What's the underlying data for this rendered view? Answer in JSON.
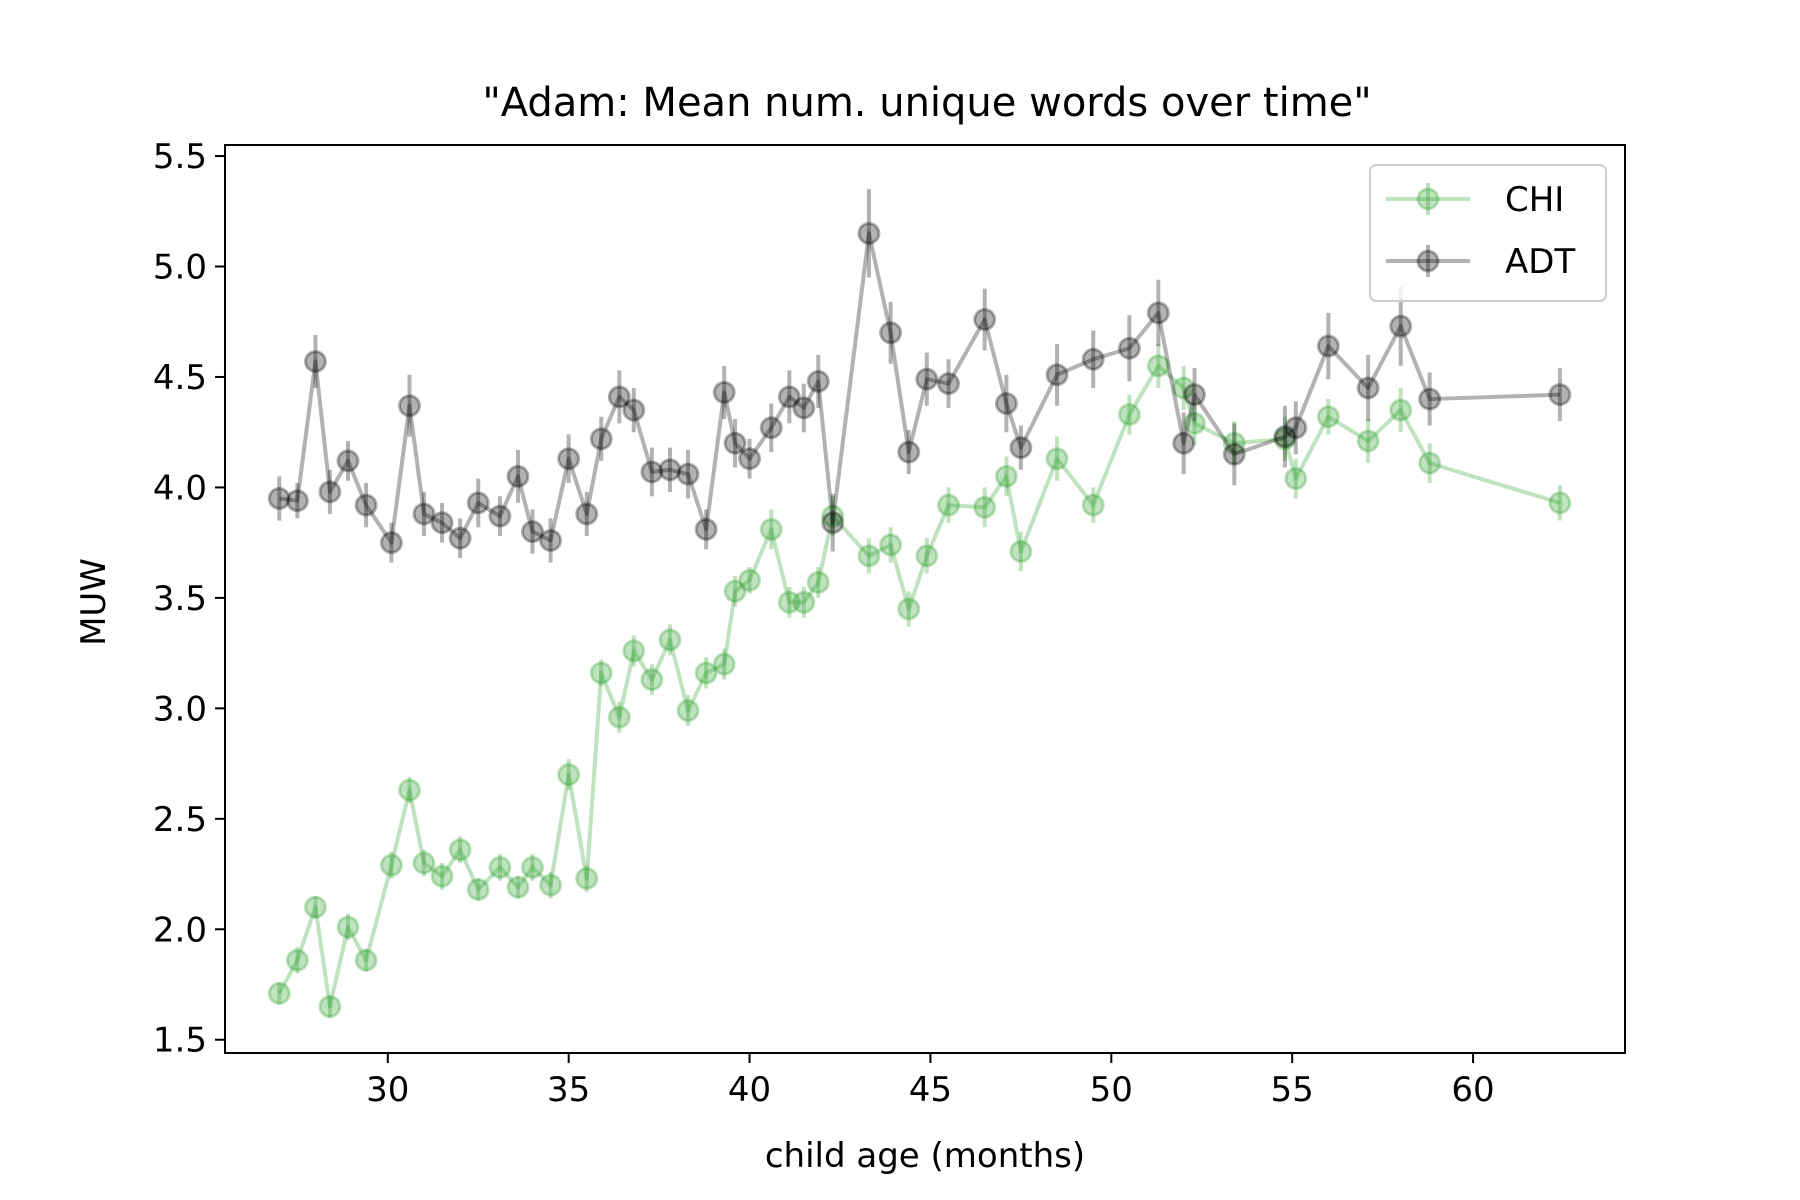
{
  "chart_data": {
    "type": "line",
    "title": "\"Adam: Mean num. unique words over time\"",
    "xlabel": "child age (months)",
    "ylabel": "MUW",
    "xlim": [
      25.5,
      64.2
    ],
    "ylim": [
      1.44,
      5.55
    ],
    "xticks": [
      30,
      35,
      40,
      45,
      50,
      55,
      60
    ],
    "yticks": [
      1.5,
      2.0,
      2.5,
      3.0,
      3.5,
      4.0,
      4.5,
      5.0,
      5.5
    ],
    "xtick_labels": [
      "30",
      "35",
      "40",
      "45",
      "50",
      "55",
      "60"
    ],
    "ytick_labels": [
      "1.5",
      "2.0",
      "2.5",
      "3.0",
      "3.5",
      "4.0",
      "4.5",
      "5.0",
      "5.5"
    ],
    "grid": false,
    "legend_position": "upper-right",
    "series": [
      {
        "name": "CHI",
        "color": "#2ca02c",
        "x": [
          27.0,
          27.5,
          28.0,
          28.4,
          28.9,
          29.4,
          30.1,
          30.6,
          31.0,
          31.5,
          32.0,
          32.5,
          33.1,
          33.6,
          34.0,
          34.5,
          35.0,
          35.5,
          35.9,
          36.4,
          36.8,
          37.3,
          37.8,
          38.3,
          38.8,
          39.3,
          39.6,
          40.0,
          40.6,
          41.1,
          41.5,
          41.9,
          42.3,
          43.3,
          43.9,
          44.4,
          44.9,
          45.5,
          46.5,
          47.1,
          47.5,
          48.5,
          49.5,
          50.5,
          51.3,
          52.0,
          52.3,
          53.4,
          54.8,
          55.1,
          56.0,
          57.1,
          58.0,
          58.8,
          62.4
        ],
        "y": [
          1.71,
          1.86,
          2.1,
          1.65,
          2.01,
          1.86,
          2.29,
          2.63,
          2.3,
          2.24,
          2.36,
          2.18,
          2.28,
          2.19,
          2.28,
          2.2,
          2.7,
          2.23,
          3.16,
          2.96,
          3.26,
          3.13,
          3.31,
          2.99,
          3.16,
          3.2,
          3.53,
          3.58,
          3.81,
          3.48,
          3.48,
          3.57,
          3.87,
          3.69,
          3.74,
          3.45,
          3.69,
          3.92,
          3.91,
          4.05,
          3.71,
          4.13,
          3.92,
          4.33,
          4.55,
          4.45,
          4.29,
          4.2,
          4.22,
          4.04,
          4.32,
          4.21,
          4.35,
          4.11,
          3.93
        ],
        "err": [
          0.05,
          0.06,
          0.05,
          0.05,
          0.06,
          0.05,
          0.06,
          0.06,
          0.06,
          0.06,
          0.06,
          0.05,
          0.06,
          0.05,
          0.06,
          0.06,
          0.07,
          0.06,
          0.06,
          0.07,
          0.07,
          0.07,
          0.07,
          0.07,
          0.07,
          0.07,
          0.07,
          0.06,
          0.09,
          0.07,
          0.07,
          0.07,
          0.09,
          0.08,
          0.08,
          0.08,
          0.08,
          0.08,
          0.09,
          0.09,
          0.09,
          0.1,
          0.08,
          0.09,
          0.1,
          0.1,
          0.1,
          0.1,
          0.1,
          0.09,
          0.08,
          0.1,
          0.1,
          0.09,
          0.08
        ]
      },
      {
        "name": "ADT",
        "color": "#000000",
        "x": [
          27.0,
          27.5,
          28.0,
          28.4,
          28.9,
          29.4,
          30.1,
          30.6,
          31.0,
          31.5,
          32.0,
          32.5,
          33.1,
          33.6,
          34.0,
          34.5,
          35.0,
          35.5,
          35.9,
          36.4,
          36.8,
          37.3,
          37.8,
          38.3,
          38.8,
          39.3,
          39.6,
          40.0,
          40.6,
          41.1,
          41.5,
          41.9,
          42.3,
          43.3,
          43.9,
          44.4,
          44.9,
          45.5,
          46.5,
          47.1,
          47.5,
          48.5,
          49.5,
          50.5,
          51.3,
          52.0,
          52.3,
          53.4,
          54.8,
          55.1,
          56.0,
          57.1,
          58.0,
          58.8,
          62.4
        ],
        "y": [
          3.95,
          3.94,
          4.57,
          3.98,
          4.12,
          3.92,
          3.75,
          4.37,
          3.88,
          3.84,
          3.77,
          3.93,
          3.87,
          4.05,
          3.8,
          3.76,
          4.13,
          3.88,
          4.22,
          4.41,
          4.35,
          4.07,
          4.08,
          4.06,
          3.81,
          4.43,
          4.2,
          4.13,
          4.27,
          4.41,
          4.36,
          4.48,
          3.84,
          5.15,
          4.7,
          4.16,
          4.49,
          4.47,
          4.76,
          4.38,
          4.18,
          4.51,
          4.58,
          4.63,
          4.79,
          4.2,
          4.42,
          4.15,
          4.23,
          4.27,
          4.64,
          4.45,
          4.73,
          4.4,
          4.42
        ],
        "err": [
          0.1,
          0.08,
          0.12,
          0.1,
          0.09,
          0.1,
          0.09,
          0.14,
          0.1,
          0.09,
          0.09,
          0.11,
          0.09,
          0.12,
          0.1,
          0.1,
          0.11,
          0.1,
          0.1,
          0.12,
          0.1,
          0.11,
          0.1,
          0.11,
          0.09,
          0.12,
          0.11,
          0.09,
          0.11,
          0.12,
          0.11,
          0.12,
          0.13,
          0.2,
          0.14,
          0.1,
          0.12,
          0.11,
          0.14,
          0.13,
          0.1,
          0.14,
          0.13,
          0.15,
          0.15,
          0.14,
          0.12,
          0.14,
          0.14,
          0.12,
          0.15,
          0.15,
          0.18,
          0.12,
          0.12
        ]
      }
    ]
  }
}
